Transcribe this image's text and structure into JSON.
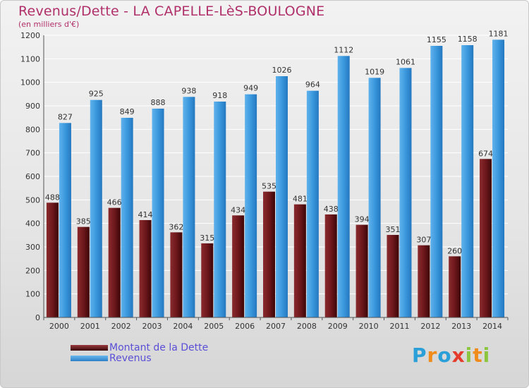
{
  "title": "Revenus/Dette - LA CAPELLE-LèS-BOULOGNE",
  "subtitle": "(en milliers d'€)",
  "colors": {
    "title": "#b0306a",
    "dette": "#7a1f24",
    "revenus": "#3a97dc",
    "legend_text": "#5a4fd6"
  },
  "legend": [
    {
      "label": "Montant de la Dette",
      "color": "#7a1f24"
    },
    {
      "label": "Revenus",
      "color": "#3a97dc"
    }
  ],
  "logo": {
    "letters": [
      "P",
      "r",
      "o",
      "x",
      "i",
      "t",
      "i"
    ],
    "colors": [
      "#2a9fd8",
      "#f08c1c",
      "#2a9fd8",
      "#e53b2c",
      "#8cc63e",
      "#f08c1c",
      "#8cc63e"
    ]
  },
  "chart_data": {
    "type": "bar",
    "categories": [
      "2000",
      "2001",
      "2002",
      "2003",
      "2004",
      "2005",
      "2006",
      "2007",
      "2008",
      "2009",
      "2010",
      "2011",
      "2012",
      "2013",
      "2014"
    ],
    "series": [
      {
        "name": "Montant de la Dette",
        "values": [
          488,
          385,
          466,
          414,
          362,
          315,
          434,
          535,
          481,
          438,
          394,
          351,
          307,
          260,
          674
        ]
      },
      {
        "name": "Revenus",
        "values": [
          827,
          925,
          849,
          888,
          938,
          918,
          949,
          1026,
          964,
          1112,
          1019,
          1061,
          1155,
          1158,
          1181
        ]
      }
    ],
    "ylim": [
      0,
      1200
    ],
    "yticks": [
      0,
      100,
      200,
      300,
      400,
      500,
      600,
      700,
      800,
      900,
      1000,
      1100,
      1200
    ],
    "grid": true,
    "legend_position": "bottom-left"
  }
}
